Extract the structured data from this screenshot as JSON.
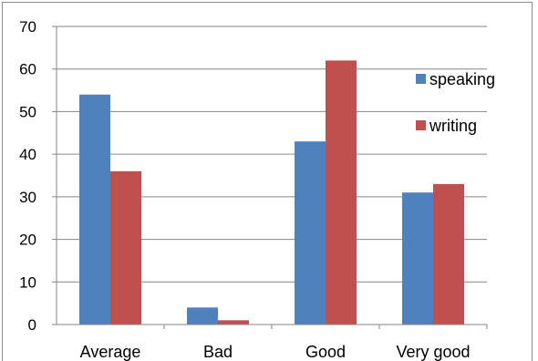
{
  "chart_data": {
    "type": "bar",
    "categories": [
      "Average",
      "Bad",
      "Good",
      "Very good"
    ],
    "series": [
      {
        "name": "speaking",
        "values": [
          54,
          4,
          43,
          31
        ],
        "color": "#4f81bd"
      },
      {
        "name": "writing",
        "values": [
          36,
          1,
          62,
          33
        ],
        "color": "#c0504d"
      }
    ],
    "yticks": [
      0,
      10,
      20,
      30,
      40,
      50,
      60,
      70
    ],
    "ylim": [
      0,
      70
    ],
    "grid": true,
    "legend_position": "right",
    "title": "",
    "xlabel": "",
    "ylabel": ""
  }
}
